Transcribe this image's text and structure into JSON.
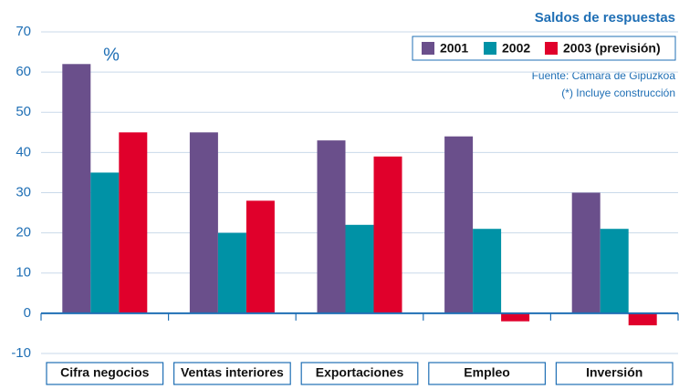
{
  "chart_data": {
    "type": "bar",
    "title": "Saldos de respuestas",
    "unit_label": "%",
    "notes": [
      "Fuente: Cámara de Gipuzkoa",
      "(*) Incluye construcción"
    ],
    "categories": [
      "Cifra negocios",
      "Ventas interiores",
      "Exportaciones",
      "Empleo",
      "Inversión"
    ],
    "series": [
      {
        "name": "2001",
        "color": "#6a4f8b",
        "values": [
          62,
          45,
          43,
          44,
          30
        ]
      },
      {
        "name": "2002",
        "color": "#0092a6",
        "values": [
          35,
          20,
          22,
          21,
          21
        ]
      },
      {
        "name": "2003 (previsión)",
        "color": "#e0002b",
        "values": [
          45,
          28,
          39,
          -2,
          -3
        ]
      }
    ],
    "ylim": [
      -10,
      70
    ],
    "yticks": [
      -10,
      0,
      10,
      20,
      30,
      40,
      50,
      60,
      70
    ],
    "grid": true
  }
}
